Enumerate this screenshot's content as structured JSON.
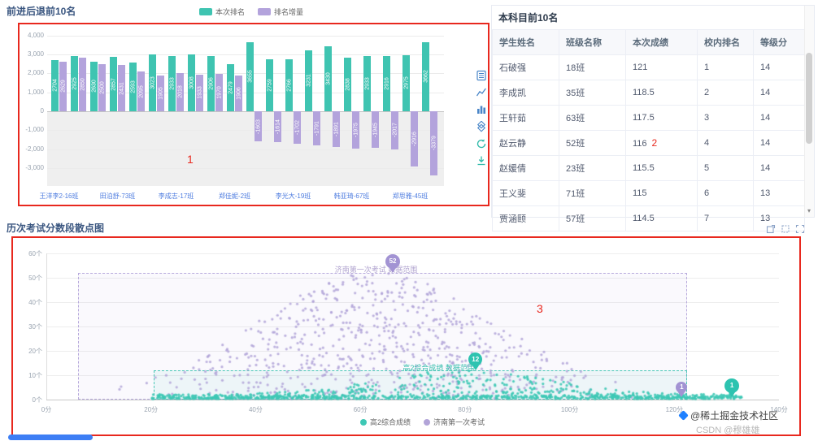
{
  "annotations": {
    "box1": "1",
    "box3": "3"
  },
  "bar_panel": {
    "y_ticks": [
      "4,000",
      "3,000",
      "2,000",
      "1,000",
      "0",
      "-1,000",
      "-2,000",
      "-3,000"
    ]
  },
  "chart_data": [
    {
      "type": "bar",
      "title": "前进后退前10名",
      "legend_position": "top",
      "ylim": [
        -4000,
        4000
      ],
      "categories": [
        "王洋李2-16班",
        "",
        "",
        "田泊舒-73班",
        "",
        "",
        "李成志-17班",
        "",
        "",
        "郑佳妮-2班",
        "",
        "",
        "李光大-19班",
        "",
        "",
        "韩亚琦-67班",
        "",
        "",
        "郑思雅-45班",
        ""
      ],
      "series": [
        {
          "name": "本次排名",
          "color": "#3fc4b1",
          "values": [
            2704,
            2925,
            2630,
            2857,
            2593,
            3023,
            2933,
            3008,
            2906,
            2479,
            3655,
            2759,
            2766,
            3231,
            3430,
            2838,
            2933,
            2916,
            2975,
            3662
          ]
        },
        {
          "name": "排名增量",
          "color": "#b3a3dc",
          "values": [
            2629,
            2850,
            2500,
            2431,
            2095,
            1905,
            2018,
            1933,
            1970,
            1906,
            -1603,
            -1614,
            -1702,
            -1791,
            -1891,
            -1975,
            -1945,
            -2017,
            -2916,
            -3379
          ]
        }
      ]
    },
    {
      "type": "table",
      "title": "本科目前10名",
      "columns": [
        "学生姓名",
        "班级名称",
        "本次成绩",
        "校内排名",
        "等级分"
      ],
      "rows": [
        [
          "石破强",
          "18班",
          "121",
          "1",
          "14"
        ],
        [
          "李成凯",
          "35班",
          "118.5",
          "2",
          "14"
        ],
        [
          "王轩茹",
          "63班",
          "117.5",
          "3",
          "14"
        ],
        [
          "赵云静",
          "52班",
          "116",
          "4",
          "14"
        ],
        [
          "赵媛倩",
          "23班",
          "115.5",
          "5",
          "14"
        ],
        [
          "王义斐",
          "71班",
          "115",
          "6",
          "13"
        ],
        [
          "贾涵颐",
          "57班",
          "114.5",
          "7",
          "13"
        ]
      ],
      "annotation": {
        "row": 3,
        "col": 2,
        "text": "2"
      }
    },
    {
      "type": "scatter",
      "title": "历次考试分数段散点图",
      "x_ticks": [
        "0分",
        "20分",
        "40分",
        "60分",
        "80分",
        "100分",
        "120分",
        "140分"
      ],
      "y_ticks": [
        "0个",
        "10个",
        "20个",
        "30个",
        "40个",
        "50个",
        "60个"
      ],
      "xlim": [
        0,
        140
      ],
      "ylim": [
        0,
        60
      ],
      "series": [
        {
          "name": "高2综合成绩",
          "color": "#3ec8b5",
          "distribution": {
            "x_range": [
              20,
              133
            ],
            "base_y": 1.8,
            "peak_x": 80,
            "peak_y": 12,
            "spread": 16
          }
        },
        {
          "name": "济南第一次考试",
          "color": "#b2a4d8",
          "distribution": {
            "x_range": [
              5,
              120
            ],
            "base_y": 0,
            "peak_x": 63,
            "peak_y": 52,
            "spread": 23
          }
        }
      ],
      "regions": [
        {
          "series": "济南第一次考试",
          "label": "济南第一次考试 数据范围",
          "x1": 6,
          "x2": 122.5,
          "y1": 0,
          "y2": 52,
          "color": "#b7a9dc",
          "label_color": "#b0a3cf",
          "label_x": 63,
          "label_y": 54.5
        },
        {
          "series": "高2综合成绩",
          "label": "高2综合成绩 数据范围",
          "x1": 20.5,
          "x2": 122.5,
          "y1": 0,
          "y2": 12,
          "color": "#49c8b6",
          "label_color": "#38bfae",
          "label_x": 75,
          "label_y": 14
        }
      ],
      "pins": [
        {
          "label": "52",
          "x": 66.2,
          "y": 52,
          "color": "#a293d3",
          "size": 18
        },
        {
          "label": "12",
          "x": 82,
          "y": 12,
          "color": "#2dc3b0",
          "size": 17
        },
        {
          "label": "1",
          "x": 121.4,
          "y": 1,
          "color": "#a293d3",
          "size": 14
        },
        {
          "label": "1",
          "x": 131,
          "y": 1,
          "color": "#2dc3b0",
          "size": 18
        }
      ]
    }
  ],
  "toolbar": {
    "icons": [
      "data-view",
      "line-chart",
      "bar-chart",
      "stack",
      "restore",
      "download"
    ]
  },
  "scatter_toolbox": {
    "icons": [
      "restore",
      "box-select",
      "fullscreen"
    ]
  },
  "watermark": {
    "line1": "@稀土掘金技术社区",
    "line2": "CSDN @穆雄雄"
  }
}
